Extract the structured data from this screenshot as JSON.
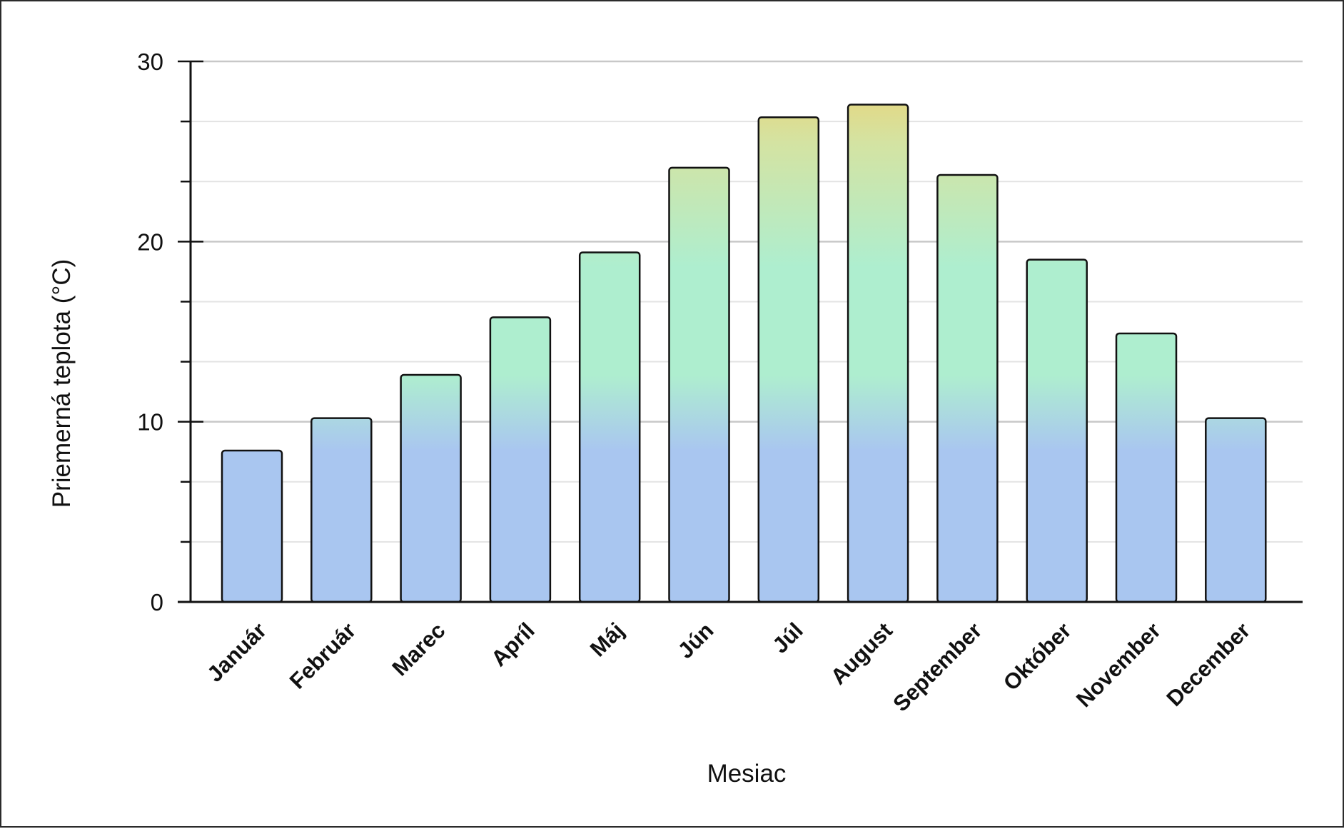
{
  "chart_data": {
    "type": "bar",
    "title": "",
    "xlabel": "Mesiac",
    "ylabel": "Priemerná teplota (°C)",
    "categories": [
      "Január",
      "Február",
      "Marec",
      "Apríl",
      "Máj",
      "Jún",
      "Júl",
      "August",
      "September",
      "Október",
      "November",
      "December"
    ],
    "series": [
      {
        "values": [
          8.4,
          10.2,
          12.6,
          15.8,
          19.4,
          24.1,
          26.9,
          27.6,
          23.7,
          19.0,
          14.9,
          10.2
        ]
      }
    ],
    "ylim": [
      0,
      30
    ],
    "yticks": [
      0,
      10,
      20,
      30
    ],
    "y_minor_step": 3.33,
    "grid": true,
    "legend": "none",
    "colors": {
      "bar_bottom": "#a9c6f0",
      "bar_mid": "#aeeecf",
      "bar_upper": "#d4e3a2",
      "bar_top": "#f0cf6c",
      "bar_outline": "#111111",
      "grid_major": "#c8c8c8",
      "grid_minor": "#e3e3e3",
      "axis": "#111111"
    }
  }
}
